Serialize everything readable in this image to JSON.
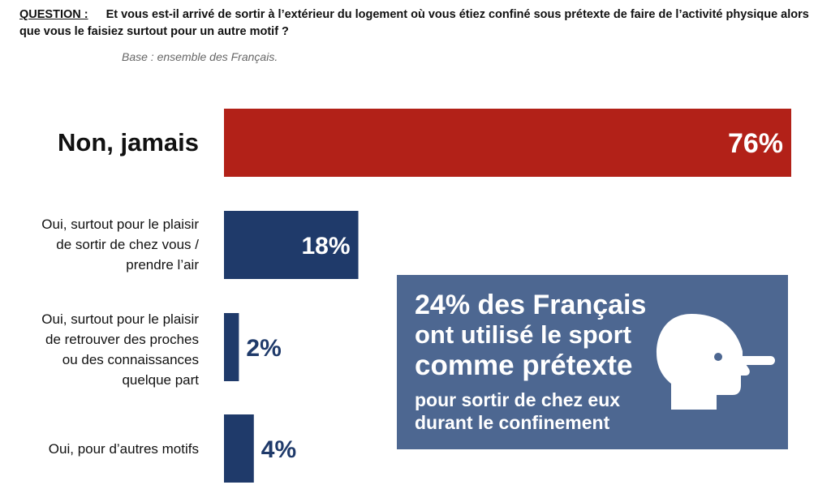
{
  "question": {
    "label": "QUESTION :",
    "text": "Et vous est-il arrivé de sortir à l’extérieur du logement où vous étiez confiné sous prétexte de faire de l’activité physique alors que vous le faisiez surtout pour un autre motif ?"
  },
  "base": "Base : ensemble des Français.",
  "chart_data": {
    "type": "bar",
    "orientation": "horizontal",
    "categories": [
      "Non, jamais",
      "Oui, surtout pour le plaisir de sortir de chez vous / prendre l’air",
      "Oui, surtout pour le plaisir de retrouver des proches ou des connaissances quelque part",
      "Oui, pour d’autres motifs"
    ],
    "values": [
      76,
      18,
      2,
      4
    ],
    "value_labels": [
      "76%",
      "18%",
      "2%",
      "4%"
    ],
    "colors": [
      "#b22118",
      "#1f3a6a",
      "#1f3a6a",
      "#1f3a6a"
    ],
    "xlim": [
      0,
      76
    ],
    "unit": "%"
  },
  "labels": {
    "cat1": "Non, jamais",
    "cat2_l1": "Oui, surtout pour le plaisir",
    "cat2_l2": "de sortir de chez vous /",
    "cat2_l3": "prendre l’air",
    "cat3_l1": "Oui, surtout pour le plaisir",
    "cat3_l2": "de retrouver des proches",
    "cat3_l3": "ou des connaissances",
    "cat3_l4": "quelque part",
    "cat4": "Oui, pour d’autres motifs"
  },
  "callout": {
    "line1": "24% des Français",
    "line2": "ont utilisé le sport",
    "line3": "comme prétexte",
    "sub1": "pour sortir de chez eux",
    "sub2": "durant le confinement",
    "icon": "lying-head-long-nose-icon",
    "background": "#4d6791"
  }
}
